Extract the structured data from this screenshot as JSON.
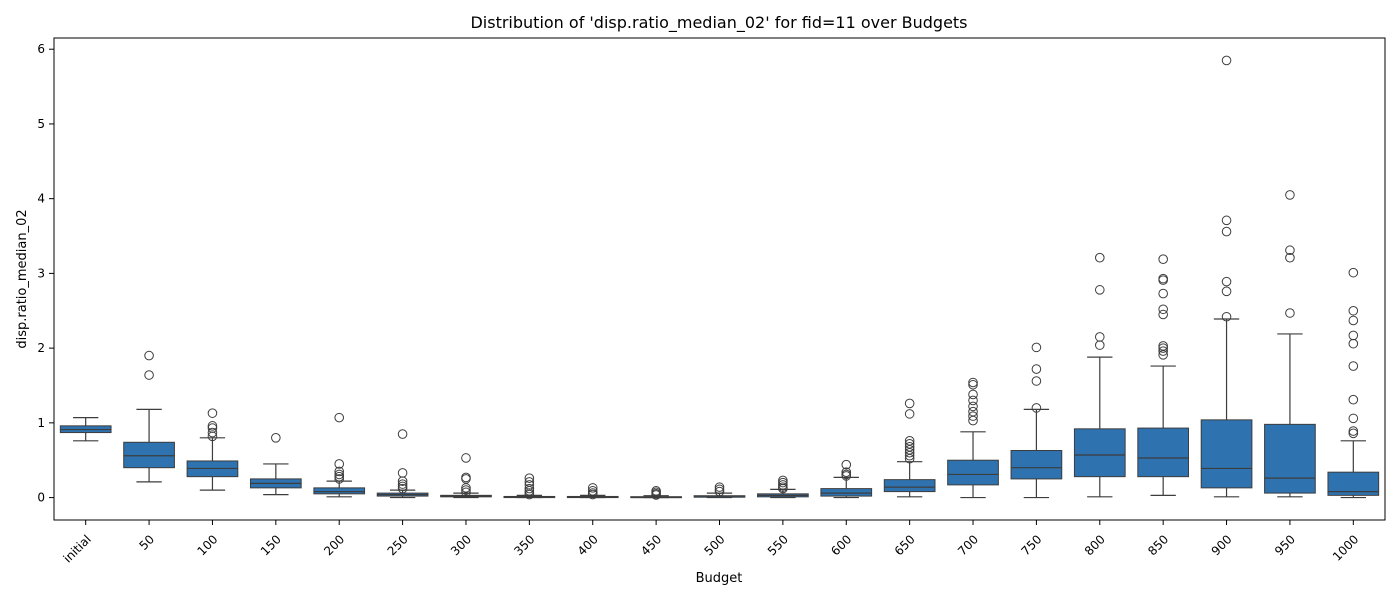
{
  "chart_data": {
    "type": "box",
    "title": "Distribution of 'disp.ratio_median_02' for fid=11 over Budgets",
    "xlabel": "Budget",
    "ylabel": "disp.ratio_median_02",
    "ylim": [
      -0.3,
      6.15
    ],
    "yticks": [
      0,
      1,
      2,
      3,
      4,
      5,
      6
    ],
    "box_color": "#2e72b0",
    "edge_color": "#3d3d3d",
    "categories": [
      "initial",
      "50",
      "100",
      "150",
      "200",
      "250",
      "300",
      "350",
      "400",
      "450",
      "500",
      "550",
      "600",
      "650",
      "700",
      "750",
      "800",
      "850",
      "900",
      "950",
      "1000"
    ],
    "boxes": [
      {
        "q1": 0.87,
        "median": 0.91,
        "q3": 0.96,
        "whislo": 0.76,
        "whishi": 1.07,
        "fliers": []
      },
      {
        "q1": 0.4,
        "median": 0.56,
        "q3": 0.74,
        "whislo": 0.21,
        "whishi": 1.18,
        "fliers": [
          1.64,
          1.9
        ]
      },
      {
        "q1": 0.28,
        "median": 0.39,
        "q3": 0.49,
        "whislo": 0.1,
        "whishi": 0.8,
        "fliers": [
          0.82,
          0.87,
          0.93,
          0.96,
          1.13
        ]
      },
      {
        "q1": 0.13,
        "median": 0.19,
        "q3": 0.25,
        "whislo": 0.04,
        "whishi": 0.45,
        "fliers": [
          0.8
        ]
      },
      {
        "q1": 0.05,
        "median": 0.08,
        "q3": 0.13,
        "whislo": 0.01,
        "whishi": 0.22,
        "fliers": [
          0.25,
          0.28,
          0.31,
          0.35,
          0.45,
          1.07
        ]
      },
      {
        "q1": 0.02,
        "median": 0.04,
        "q3": 0.06,
        "whislo": 0.0,
        "whishi": 0.1,
        "fliers": [
          0.12,
          0.15,
          0.18,
          0.22,
          0.33,
          0.85
        ]
      },
      {
        "q1": 0.01,
        "median": 0.02,
        "q3": 0.03,
        "whislo": 0.0,
        "whishi": 0.06,
        "fliers": [
          0.07,
          0.1,
          0.13,
          0.25,
          0.27,
          0.53
        ]
      },
      {
        "q1": 0.0,
        "median": 0.01,
        "q3": 0.015,
        "whislo": 0.0,
        "whishi": 0.03,
        "fliers": [
          0.04,
          0.06,
          0.09,
          0.12,
          0.17,
          0.21,
          0.26
        ]
      },
      {
        "q1": 0.0,
        "median": 0.005,
        "q3": 0.015,
        "whislo": 0.0,
        "whishi": 0.03,
        "fliers": [
          0.04,
          0.06,
          0.09,
          0.13
        ]
      },
      {
        "q1": 0.0,
        "median": 0.005,
        "q3": 0.012,
        "whislo": 0.0,
        "whishi": 0.025,
        "fliers": [
          0.035,
          0.05,
          0.07,
          0.09
        ]
      },
      {
        "q1": 0.005,
        "median": 0.01,
        "q3": 0.025,
        "whislo": 0.0,
        "whishi": 0.06,
        "fliers": [
          0.08,
          0.11,
          0.14
        ]
      },
      {
        "q1": 0.01,
        "median": 0.03,
        "q3": 0.05,
        "whislo": 0.0,
        "whishi": 0.11,
        "fliers": [
          0.12,
          0.14,
          0.17,
          0.2,
          0.23
        ]
      },
      {
        "q1": 0.02,
        "median": 0.06,
        "q3": 0.12,
        "whislo": 0.0,
        "whishi": 0.27,
        "fliers": [
          0.29,
          0.31,
          0.34,
          0.44
        ]
      },
      {
        "q1": 0.08,
        "median": 0.14,
        "q3": 0.24,
        "whislo": 0.01,
        "whishi": 0.48,
        "fliers": [
          0.52,
          0.56,
          0.6,
          0.64,
          0.68,
          0.72,
          0.76,
          1.12,
          1.26
        ]
      },
      {
        "q1": 0.17,
        "median": 0.31,
        "q3": 0.5,
        "whislo": 0.0,
        "whishi": 0.88,
        "fliers": [
          1.03,
          1.09,
          1.15,
          1.22,
          1.3,
          1.38,
          1.51,
          1.54
        ]
      },
      {
        "q1": 0.25,
        "median": 0.4,
        "q3": 0.63,
        "whislo": 0.0,
        "whishi": 1.18,
        "fliers": [
          1.2,
          1.56,
          1.72,
          2.01
        ]
      },
      {
        "q1": 0.28,
        "median": 0.57,
        "q3": 0.92,
        "whislo": 0.01,
        "whishi": 1.88,
        "fliers": [
          2.04,
          2.15,
          2.78,
          3.21
        ]
      },
      {
        "q1": 0.28,
        "median": 0.53,
        "q3": 0.93,
        "whislo": 0.03,
        "whishi": 1.76,
        "fliers": [
          1.91,
          1.96,
          2.0,
          2.03,
          2.45,
          2.52,
          2.73,
          2.91,
          2.93,
          3.19
        ]
      },
      {
        "q1": 0.13,
        "median": 0.39,
        "q3": 1.04,
        "whislo": 0.01,
        "whishi": 2.39,
        "fliers": [
          2.42,
          2.76,
          2.89,
          3.56,
          3.71,
          5.85
        ]
      },
      {
        "q1": 0.06,
        "median": 0.26,
        "q3": 0.98,
        "whislo": 0.01,
        "whishi": 2.19,
        "fliers": [
          2.47,
          3.21,
          3.31,
          4.05
        ]
      },
      {
        "q1": 0.03,
        "median": 0.08,
        "q3": 0.34,
        "whislo": 0.0,
        "whishi": 0.76,
        "fliers": [
          0.86,
          0.89,
          1.06,
          1.31,
          1.76,
          2.06,
          2.17,
          2.37,
          2.5,
          3.01
        ]
      }
    ]
  }
}
